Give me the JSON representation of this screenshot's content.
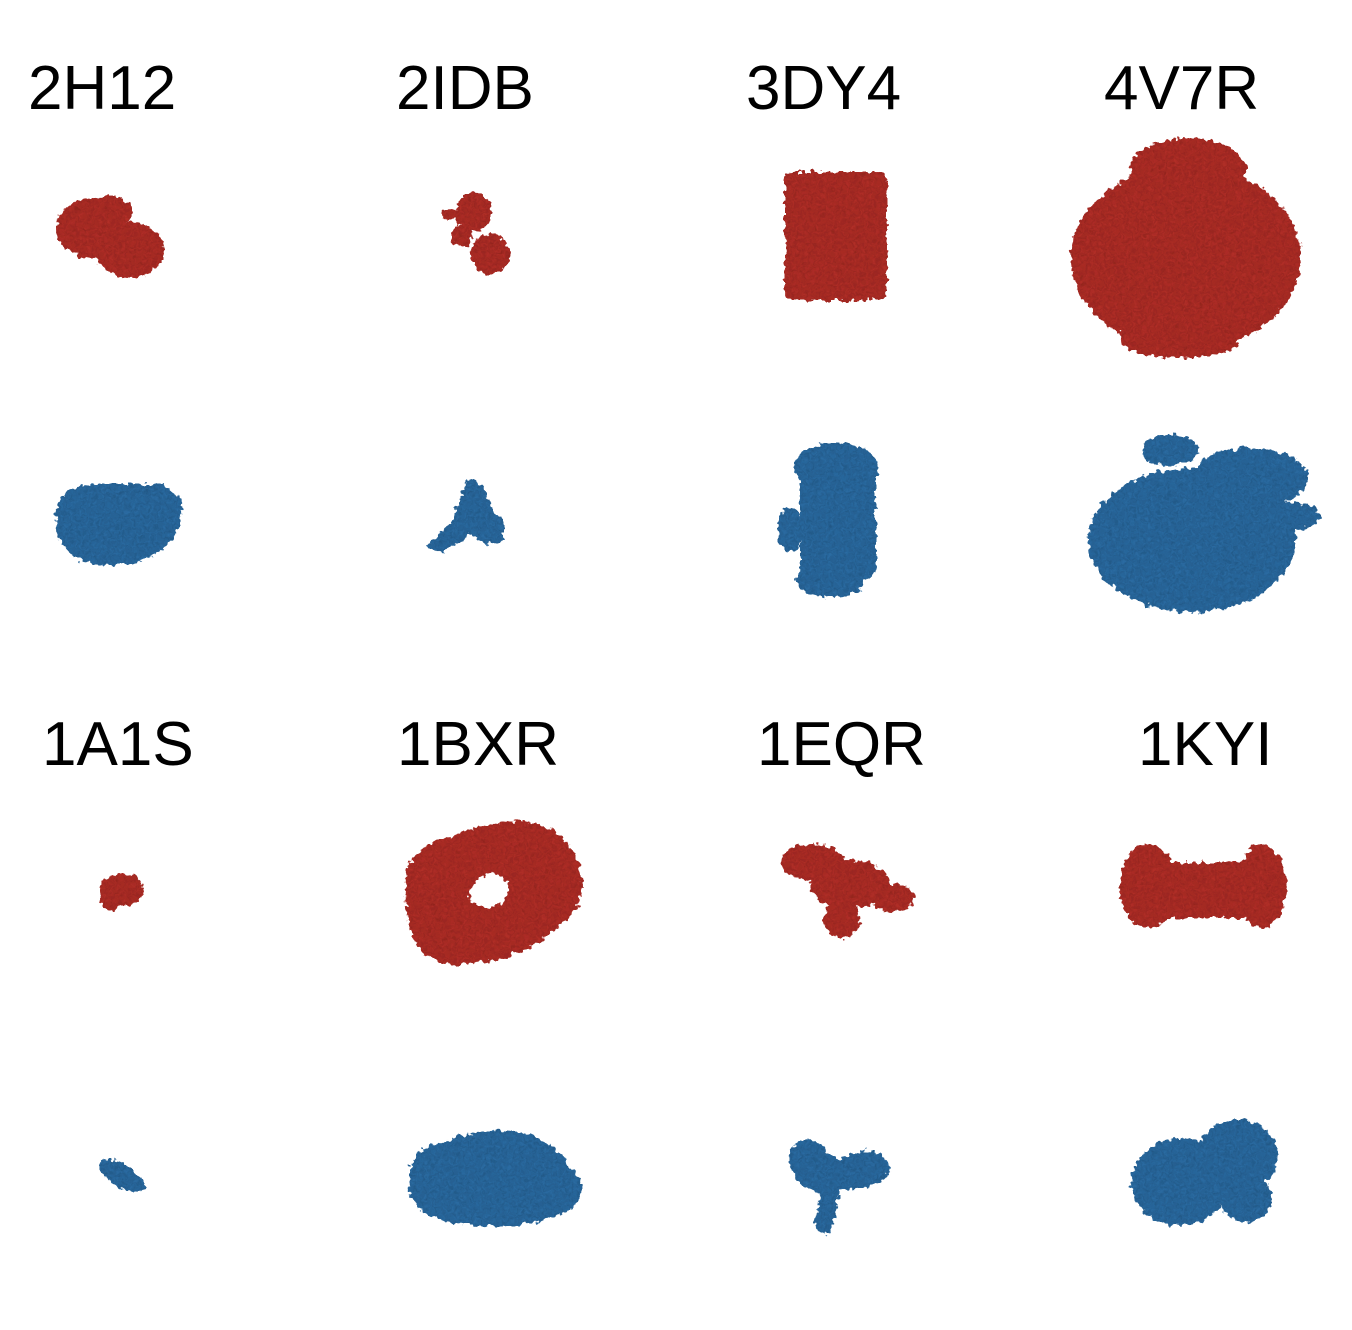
{
  "colors": {
    "red": "#b8312b",
    "red_dark": "#8e1f1c",
    "red_light": "#cf4a42",
    "blue": "#2f6fa8",
    "blue_dark": "#1f4f80",
    "blue_light": "#4a8cc2"
  },
  "rows": [
    {
      "labels": [
        "2H12",
        "2IDB",
        "3DY4",
        "4V7R"
      ]
    },
    {
      "labels": [
        "1A1S",
        "1BXR",
        "1EQR",
        "1KYI"
      ]
    }
  ]
}
